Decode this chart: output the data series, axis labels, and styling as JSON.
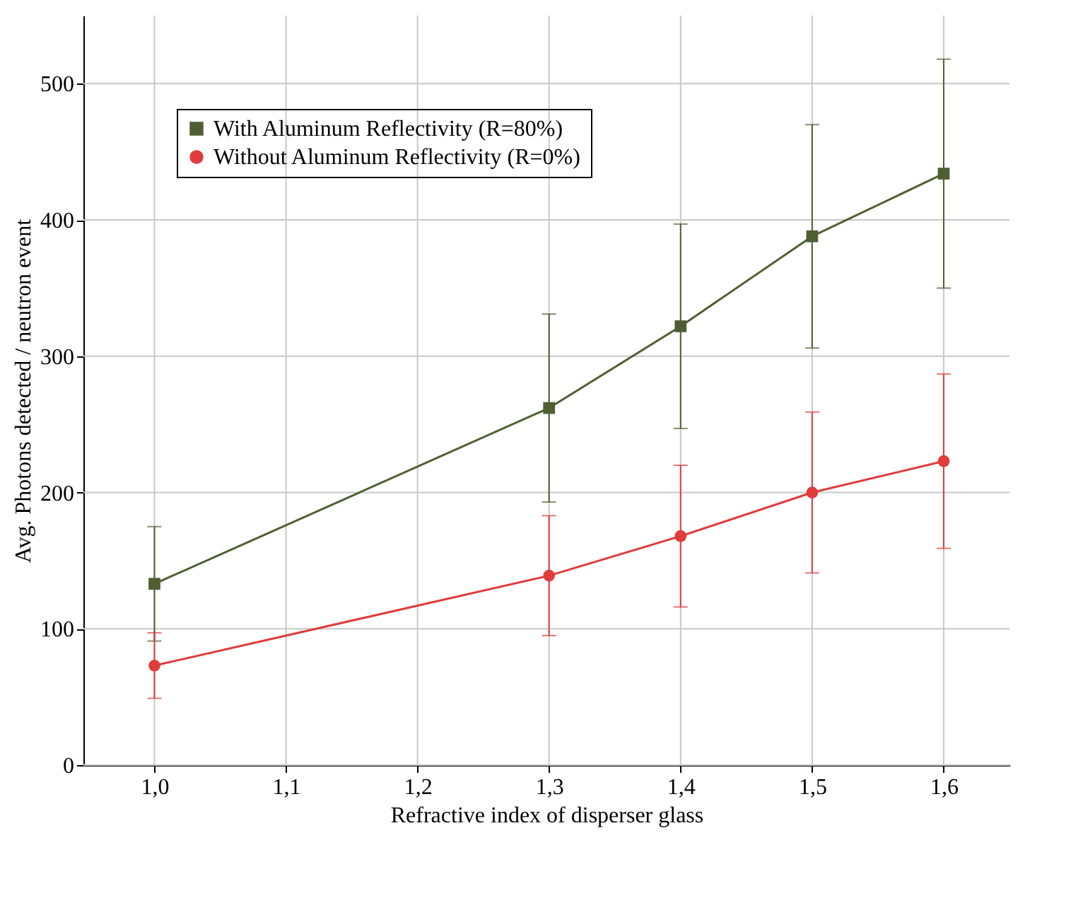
{
  "chart_data": {
    "type": "line",
    "xlabel": "Refractive index of disperser glass",
    "ylabel": "Avg. Photons detected / neutron event",
    "x": [
      1.0,
      1.3,
      1.4,
      1.5,
      1.6
    ],
    "series": [
      {
        "name": "With Aluminum Reflectivity (R=80%)",
        "color": "#4f5f33",
        "marker": "square",
        "values": [
          133,
          262,
          322,
          388,
          434
        ],
        "errors": [
          42,
          69,
          75,
          82,
          84
        ]
      },
      {
        "name": "Without Aluminum Reflectivity (R=0%)",
        "color": "#e03c3c",
        "marker": "circle",
        "values": [
          73,
          139,
          168,
          200,
          223
        ],
        "errors": [
          24,
          44,
          52,
          59,
          64
        ]
      }
    ],
    "xlim": [
      0.946,
      1.65
    ],
    "xticks": [
      {
        "value": 1.0,
        "label": "1,0"
      },
      {
        "value": 1.1,
        "label": "1,1"
      },
      {
        "value": 1.2,
        "label": "1,2"
      },
      {
        "value": 1.3,
        "label": "1,3"
      },
      {
        "value": 1.4,
        "label": "1,4"
      },
      {
        "value": 1.5,
        "label": "1,5"
      },
      {
        "value": 1.6,
        "label": "1,6"
      }
    ],
    "ylim": [
      0,
      550
    ],
    "yticks": [
      0,
      100,
      200,
      300,
      400,
      500
    ],
    "grid": true,
    "legend": "top left",
    "line_style": "solid"
  }
}
